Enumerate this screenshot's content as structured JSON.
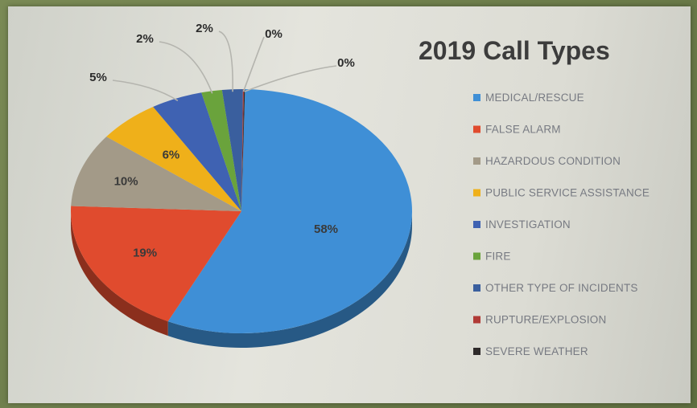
{
  "chart_data": {
    "type": "pie",
    "title": "2019 Call Types",
    "legend_position": "right",
    "labels": [
      "MEDICAL/RESCUE",
      "FALSE ALARM",
      "HAZARDOUS CONDITION",
      "PUBLIC SERVICE ASSISTANCE",
      "INVESTIGATION",
      "FIRE",
      "OTHER TYPE OF INCIDENTS",
      "RUPTURE/EXPLOSION",
      "SEVERE WEATHER"
    ],
    "values": [
      58,
      19,
      10,
      6,
      5,
      2,
      2,
      0,
      0
    ],
    "data_labels": [
      "58%",
      "19%",
      "10%",
      "6%",
      "5%",
      "2%",
      "2%",
      "0%",
      "0%"
    ],
    "colors": [
      "#3f8fd6",
      "#e04b2e",
      "#a39a88",
      "#efb01a",
      "#3f62b2",
      "#6aa33c",
      "#3a5f9e",
      "#b03a36",
      "#2e2a2a"
    ]
  }
}
